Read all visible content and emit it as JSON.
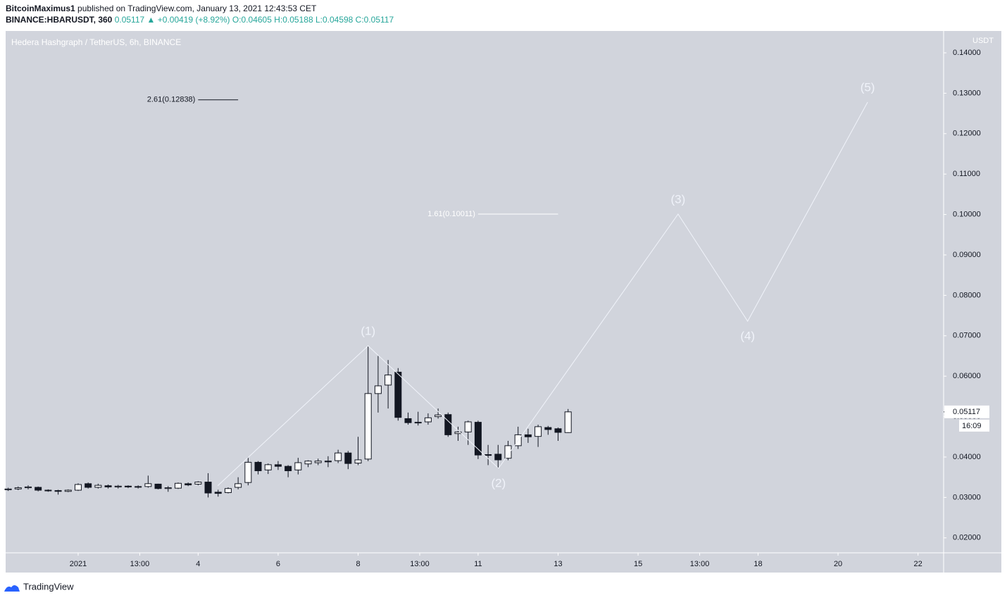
{
  "header": {
    "author": "BitcoinMaximus1",
    "published": "published on TradingView.com, January 13, 2021 12:43:53 CET",
    "symbol": "BINANCE:HBARUSDT, 360",
    "last": "0.05117",
    "change": "▲ +0.00419 (+8.92%)",
    "ohlc": "O:0.04605 H:0.05188 L:0.04598 C:0.05117"
  },
  "chart_data": {
    "type": "candlestick",
    "title": "Hedera Hashgraph / TetherUS, 6h, BINANCE",
    "y_unit": "USDT",
    "up_color": "#ffffff",
    "down_color": "#131722",
    "wick_color": "#131722",
    "background": "#d1d4dc",
    "x": [
      -0.75,
      -0.5,
      -0.25,
      0,
      0.25,
      0.5,
      0.75,
      1,
      1.25,
      1.5,
      1.75,
      2,
      2.25,
      2.5,
      2.75,
      3,
      3.25,
      3.5,
      3.75,
      4,
      4.25,
      4.5,
      4.75,
      5,
      5.25,
      5.5,
      5.75,
      6,
      6.25,
      6.5,
      6.75,
      7,
      7.25,
      7.5,
      7.75,
      8,
      8.25,
      8.5,
      8.75,
      9,
      9.25,
      9.5,
      9.75,
      10,
      10.25,
      10.5,
      10.75,
      11,
      11.25,
      11.5,
      11.75,
      12,
      12.25,
      12.5,
      12.75,
      13,
      13.25
    ],
    "open": [
      0.0319,
      0.0321,
      0.0324,
      0.0325,
      0.0318,
      0.0317,
      0.0315,
      0.0318,
      0.0334,
      0.0325,
      0.0329,
      0.0326,
      0.0328,
      0.0326,
      0.0327,
      0.0333,
      0.0322,
      0.0323,
      0.0334,
      0.0333,
      0.0338,
      0.0313,
      0.0312,
      0.0325,
      0.0337,
      0.0387,
      0.0368,
      0.0381,
      0.0377,
      0.0368,
      0.0383,
      0.0386,
      0.039,
      0.0391,
      0.041,
      0.0385,
      0.0395,
      0.0557,
      0.0578,
      0.061,
      0.0495,
      0.0486,
      0.0487,
      0.05,
      0.0505,
      0.0458,
      0.0462,
      0.0486,
      0.0406,
      0.0407,
      0.0397,
      0.0428,
      0.0455,
      0.0451,
      0.0473,
      0.047,
      0.04605
    ],
    "high": [
      0.0324,
      0.0327,
      0.033,
      0.0327,
      0.032,
      0.0319,
      0.032,
      0.0335,
      0.0337,
      0.0334,
      0.0332,
      0.0331,
      0.033,
      0.033,
      0.0354,
      0.0334,
      0.0328,
      0.0337,
      0.0337,
      0.034,
      0.036,
      0.0319,
      0.0325,
      0.035,
      0.04,
      0.039,
      0.0384,
      0.039,
      0.038,
      0.0398,
      0.0392,
      0.0396,
      0.0402,
      0.0418,
      0.0415,
      0.045,
      0.0675,
      0.065,
      0.064,
      0.062,
      0.051,
      0.0512,
      0.0508,
      0.052,
      0.051,
      0.0475,
      0.049,
      0.049,
      0.043,
      0.043,
      0.044,
      0.0475,
      0.047,
      0.048,
      0.0477,
      0.0473,
      0.05188
    ],
    "low": [
      0.0316,
      0.0318,
      0.032,
      0.0315,
      0.0314,
      0.0307,
      0.0313,
      0.0316,
      0.0322,
      0.0322,
      0.0322,
      0.0322,
      0.0323,
      0.0322,
      0.0324,
      0.032,
      0.0314,
      0.0321,
      0.0328,
      0.033,
      0.03,
      0.0302,
      0.031,
      0.032,
      0.033,
      0.0357,
      0.0358,
      0.0368,
      0.035,
      0.0357,
      0.0375,
      0.038,
      0.0375,
      0.0385,
      0.037,
      0.038,
      0.039,
      0.051,
      0.052,
      0.049,
      0.048,
      0.0478,
      0.048,
      0.0495,
      0.045,
      0.044,
      0.043,
      0.0395,
      0.038,
      0.0372,
      0.0392,
      0.042,
      0.0435,
      0.0425,
      0.0455,
      0.044,
      0.04598
    ],
    "close": [
      0.0321,
      0.0324,
      0.0326,
      0.0318,
      0.0317,
      0.0315,
      0.0318,
      0.0332,
      0.0325,
      0.033,
      0.0326,
      0.0328,
      0.0326,
      0.0327,
      0.0334,
      0.0322,
      0.0324,
      0.0335,
      0.0331,
      0.0338,
      0.0311,
      0.031,
      0.0322,
      0.0334,
      0.0387,
      0.0366,
      0.0381,
      0.0377,
      0.0366,
      0.0386,
      0.039,
      0.039,
      0.0388,
      0.041,
      0.0384,
      0.0393,
      0.0557,
      0.0576,
      0.0603,
      0.0498,
      0.0485,
      0.0486,
      0.0497,
      0.0504,
      0.0455,
      0.0462,
      0.0487,
      0.0405,
      0.0404,
      0.0393,
      0.0428,
      0.0455,
      0.045,
      0.0475,
      0.0468,
      0.0461,
      0.05117
    ],
    "xlim": [
      -0.813,
      22.64
    ],
    "ylim": [
      0.0163,
      0.1454
    ],
    "xticks": [
      {
        "value": 1,
        "label": "2021"
      },
      {
        "value": 2.54,
        "label": "13:00"
      },
      4,
      6,
      8,
      {
        "value": 9.54,
        "label": "13:00"
      },
      11,
      13,
      15,
      {
        "value": 16.54,
        "label": "13:00"
      },
      18,
      20,
      22
    ],
    "yticks": [
      {
        "value": 0.02,
        "label": "0.02000"
      },
      {
        "value": 0.03,
        "label": "0.03000"
      },
      {
        "value": 0.04,
        "label": "0.04000"
      },
      {
        "value": 0.05,
        "label": "0.05000"
      },
      {
        "value": 0.06,
        "label": "0.06000"
      },
      {
        "value": 0.07,
        "label": "0.07000"
      },
      {
        "value": 0.08,
        "label": "0.08000"
      },
      {
        "value": 0.09,
        "label": "0.09000"
      },
      {
        "value": 0.1,
        "label": "0.10000"
      },
      {
        "value": 0.11,
        "label": "0.11000"
      },
      {
        "value": 0.12,
        "label": "0.12000"
      },
      {
        "value": 0.13,
        "label": "0.13000"
      },
      {
        "value": 0.14,
        "label": "0.14000"
      }
    ],
    "grid": false,
    "waves": {
      "color": "#f0f3fa",
      "x": [
        4.49,
        8.25,
        11.51,
        16.0,
        17.74,
        20.74
      ],
      "y": [
        0.0329,
        0.0675,
        0.0372,
        0.1001,
        0.0736,
        0.1278
      ],
      "labels": [
        null,
        "(1)",
        "(2)",
        "(3)",
        "(4)",
        "(5)"
      ]
    },
    "fib_levels": [
      {
        "label": "2.61(0.12838)",
        "value": 0.12838,
        "x": [
          4,
          5
        ],
        "color": "#131722"
      },
      {
        "label": "1.61(0.10011)",
        "value": 0.10011,
        "x": [
          11,
          13
        ],
        "color": "#ffffff"
      }
    ],
    "last_price_label": "0.05117",
    "countdown": "16:09"
  },
  "footer": {
    "brand": "TradingView"
  }
}
